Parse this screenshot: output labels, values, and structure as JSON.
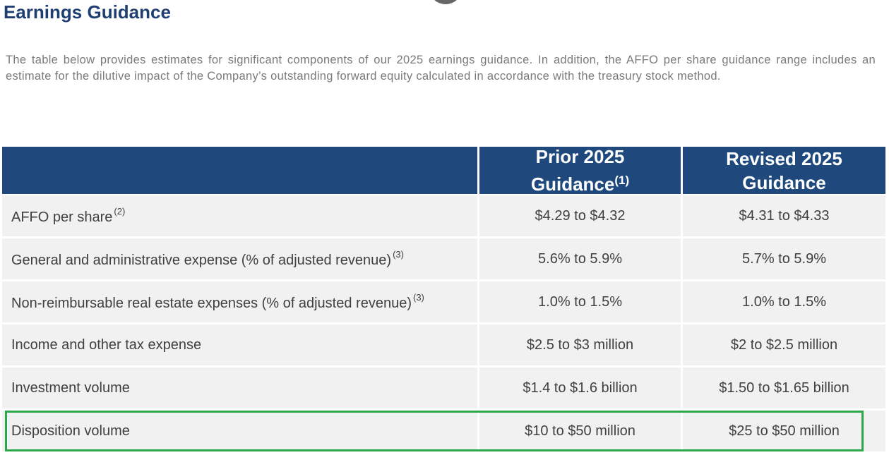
{
  "header": {
    "title": "Earnings Guidance"
  },
  "intro": "The table below provides estimates for significant components of our 2025 earnings guidance. In addition, the AFFO per share guidance range includes an estimate for the dilutive impact of the Company’s outstanding forward equity calculated in accordance with the treasury stock method.",
  "table": {
    "columns": [
      {
        "lines": [
          "Prior 2025",
          "Guidance"
        ],
        "note": "(1)"
      },
      {
        "lines": [
          "Revised 2025",
          "Guidance"
        ]
      }
    ],
    "rows": [
      {
        "label": "AFFO per share",
        "note": "(2)",
        "prior": "$4.29 to $4.32",
        "revised": "$4.31 to $4.33"
      },
      {
        "label": "General and administrative expense (% of adjusted revenue)",
        "note": "(3)",
        "prior": "5.6% to 5.9%",
        "revised": "5.7% to 5.9%"
      },
      {
        "label": "Non-reimbursable real estate expenses (% of adjusted revenue)",
        "note": "(3)",
        "prior": "1.0% to 1.5%",
        "revised": "1.0% to 1.5%"
      },
      {
        "label": "Income and other tax expense",
        "prior": "$2.5 to $3 million",
        "revised": "$2 to $2.5 million"
      },
      {
        "label": "Investment volume",
        "prior": "$1.4 to $1.6 billion",
        "revised": "$1.50 to $1.65 billion"
      },
      {
        "label": "Disposition volume",
        "prior": "$10 to $50 million",
        "revised": "$25 to $50 million"
      }
    ]
  }
}
